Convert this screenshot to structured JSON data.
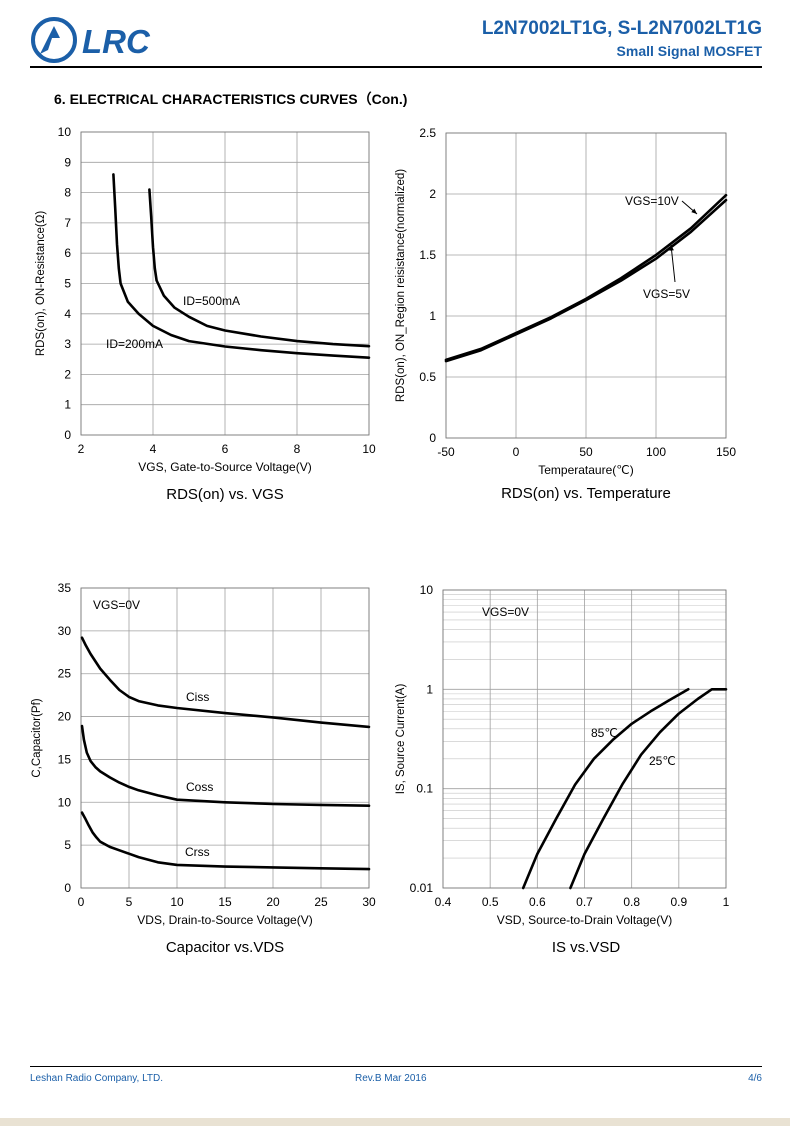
{
  "header": {
    "logo_text": "LRC",
    "part_number": "L2N7002LT1G, S-L2N7002LT1G",
    "subtitle": "Small Signal MOSFET"
  },
  "section_title": "6. ELECTRICAL CHARACTERISTICS CURVES（Con.)",
  "footer": {
    "company": "Leshan Radio Company, LTD.",
    "revision": "Rev.B   Mar 2016",
    "page": "4/6"
  },
  "colors": {
    "brand": "#1b5fa8",
    "curve": "#000000",
    "grid": "#a0a0a0"
  },
  "chart_data": [
    {
      "type": "line",
      "title": "RDS(on) vs. VGS",
      "xlabel": "VGS, Gate-to-Source Voltage(V)",
      "ylabel": "RDS(on), ON-Resistance(Ω)",
      "xlim": [
        2,
        10
      ],
      "ylim": [
        0,
        10
      ],
      "xticks": [
        2,
        4,
        6,
        8,
        10
      ],
      "yticks": [
        0,
        1,
        2,
        3,
        4,
        5,
        6,
        7,
        8,
        9,
        10
      ],
      "grid": true,
      "series": [
        {
          "name": "ID=200mA",
          "x": [
            2.9,
            2.95,
            3.0,
            3.05,
            3.1,
            3.3,
            3.6,
            4.0,
            4.5,
            5.0,
            6.0,
            7.0,
            8.0,
            9.0,
            10.0
          ],
          "y": [
            8.6,
            7.5,
            6.3,
            5.5,
            5.0,
            4.4,
            4.0,
            3.6,
            3.3,
            3.1,
            2.92,
            2.8,
            2.7,
            2.62,
            2.55
          ]
        },
        {
          "name": "ID=500mA",
          "x": [
            3.9,
            3.95,
            4.0,
            4.05,
            4.1,
            4.3,
            4.6,
            5.0,
            5.5,
            6.0,
            7.0,
            8.0,
            9.0,
            10.0
          ],
          "y": [
            8.1,
            7.2,
            6.2,
            5.5,
            5.1,
            4.6,
            4.2,
            3.9,
            3.6,
            3.45,
            3.25,
            3.1,
            3.0,
            2.93
          ]
        }
      ],
      "annotations": [
        "ID=500mA",
        "ID=200mA"
      ]
    },
    {
      "type": "line",
      "title": "RDS(on) vs. Temperature",
      "xlabel": "Temperataure(℃)",
      "ylabel": "RDS(on), ON_Region reisistance(normalized)",
      "xlim": [
        -50,
        150
      ],
      "ylim": [
        0,
        2.5
      ],
      "xticks": [
        -50,
        0,
        50,
        100,
        150
      ],
      "yticks": [
        0,
        0.5,
        1,
        1.5,
        2,
        2.5
      ],
      "grid": true,
      "series": [
        {
          "name": "VGS=10V",
          "x": [
            -50,
            -25,
            0,
            25,
            50,
            75,
            100,
            125,
            150
          ],
          "y": [
            0.64,
            0.73,
            0.86,
            0.99,
            1.14,
            1.31,
            1.5,
            1.72,
            1.99
          ]
        },
        {
          "name": "VGS=5V",
          "x": [
            -50,
            -25,
            0,
            25,
            50,
            75,
            100,
            125,
            150
          ],
          "y": [
            0.63,
            0.72,
            0.85,
            0.98,
            1.13,
            1.29,
            1.47,
            1.69,
            1.95
          ]
        }
      ],
      "annotations": [
        "VGS=10V",
        "VGS=5V"
      ]
    },
    {
      "type": "line",
      "title": "Capacitor vs.VDS",
      "xlabel": "VDS, Drain-to-Source Voltage(V)",
      "ylabel": "C,Capacitor(Pf)",
      "xlim": [
        0,
        30
      ],
      "ylim": [
        0,
        35
      ],
      "xticks": [
        0,
        5,
        10,
        15,
        20,
        25,
        30
      ],
      "yticks": [
        0,
        5,
        10,
        15,
        20,
        25,
        30,
        35
      ],
      "grid": true,
      "series": [
        {
          "name": "Ciss",
          "x": [
            0.1,
            0.5,
            1,
            2,
            3,
            4,
            5,
            6,
            8,
            10,
            15,
            20,
            25,
            30
          ],
          "y": [
            29.2,
            28.3,
            27.3,
            25.6,
            24.3,
            23.1,
            22.3,
            21.8,
            21.3,
            21.0,
            20.4,
            19.9,
            19.3,
            18.8
          ]
        },
        {
          "name": "Coss",
          "x": [
            0.1,
            0.3,
            0.6,
            1,
            1.5,
            2,
            3,
            4,
            5,
            6,
            8,
            10,
            15,
            20,
            25,
            30
          ],
          "y": [
            18.9,
            17.3,
            15.8,
            14.8,
            14.1,
            13.6,
            12.9,
            12.3,
            11.8,
            11.4,
            10.8,
            10.3,
            10.0,
            9.8,
            9.7,
            9.6
          ]
        },
        {
          "name": "Crss",
          "x": [
            0.1,
            0.4,
            0.8,
            1.2,
            1.6,
            2,
            3,
            4,
            5,
            6,
            8,
            10,
            15,
            20,
            25,
            30
          ],
          "y": [
            8.8,
            8.2,
            7.3,
            6.5,
            5.9,
            5.4,
            4.8,
            4.4,
            4.0,
            3.6,
            3.0,
            2.7,
            2.5,
            2.4,
            2.3,
            2.2
          ]
        }
      ],
      "annotations": [
        "VGS=0V",
        "Ciss",
        "Coss",
        "Crss"
      ]
    },
    {
      "type": "line",
      "title": "IS vs.VSD",
      "xlabel": "VSD, Source-to-Drain Voltage(V)",
      "ylabel": "IS, Source Current(A)",
      "xlim": [
        0.4,
        1
      ],
      "ylim": [
        0.01,
        10
      ],
      "yscale": "log",
      "xticks": [
        0.4,
        0.5,
        0.6,
        0.7,
        0.8,
        0.9,
        1
      ],
      "xtick_labels": [
        "0.4",
        "0.5",
        "0.6",
        "0.7",
        "0.8",
        "0.9",
        "1"
      ],
      "yticks": [
        0.01,
        0.1,
        1,
        10
      ],
      "ytick_labels": [
        "0.01",
        "0.1",
        "1",
        "10"
      ],
      "grid": true,
      "series": [
        {
          "name": "85℃",
          "x": [
            0.57,
            0.6,
            0.64,
            0.68,
            0.72,
            0.76,
            0.8,
            0.84,
            0.88,
            0.92
          ],
          "y": [
            0.01,
            0.022,
            0.05,
            0.11,
            0.2,
            0.31,
            0.45,
            0.6,
            0.78,
            1.0
          ]
        },
        {
          "name": "25℃",
          "x": [
            0.67,
            0.7,
            0.74,
            0.78,
            0.82,
            0.86,
            0.9,
            0.94,
            0.97,
            1.0
          ],
          "y": [
            0.01,
            0.022,
            0.05,
            0.11,
            0.22,
            0.37,
            0.57,
            0.8,
            1.0,
            1.0
          ]
        }
      ],
      "annotations": [
        "VGS=0V",
        "85℃",
        "25℃"
      ]
    }
  ]
}
